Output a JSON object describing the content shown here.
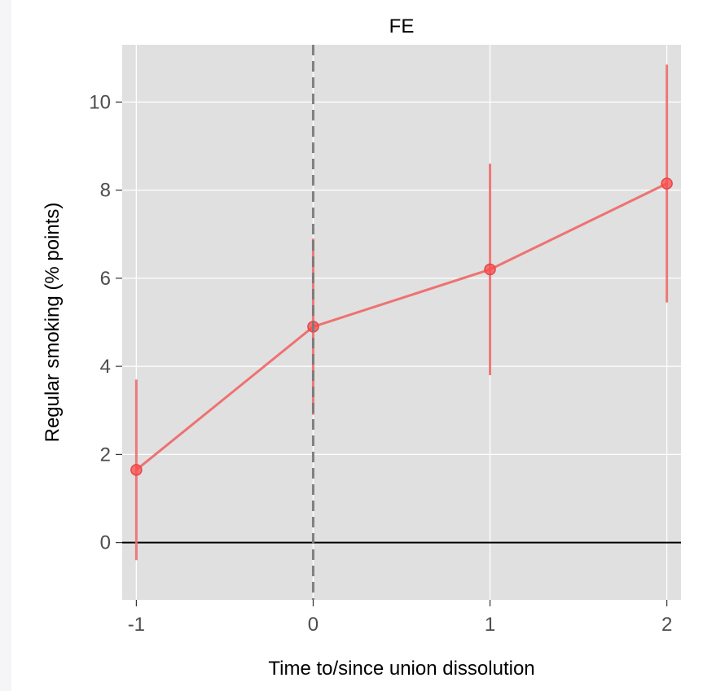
{
  "chart_data": {
    "type": "line",
    "title": "FE",
    "xlabel": "Time to/since union dissolution",
    "ylabel": "Regular smoking (% points)",
    "x": [
      -1,
      0,
      1,
      2
    ],
    "x_tick_labels": [
      "-1",
      "0",
      "1",
      "2"
    ],
    "xlim": [
      -1.08,
      2.08
    ],
    "ylim": [
      -1.3,
      11.3
    ],
    "y_ticks": [
      0,
      2,
      4,
      6,
      8,
      10
    ],
    "y_tick_labels": [
      "0",
      "2",
      "4",
      "6",
      "8",
      "10"
    ],
    "series": [
      {
        "values": [
          1.65,
          4.9,
          6.2,
          8.15
        ],
        "ci_lower": [
          -0.4,
          2.9,
          3.8,
          5.45
        ],
        "ci_upper": [
          3.7,
          6.9,
          8.6,
          10.85
        ],
        "color": "#ee6b6b"
      }
    ],
    "reference_lines": {
      "horizontal_y": 0,
      "vertical_dashed_x": 0
    },
    "grid": true,
    "panel_background": "#e0e0e0",
    "legend": "none"
  }
}
